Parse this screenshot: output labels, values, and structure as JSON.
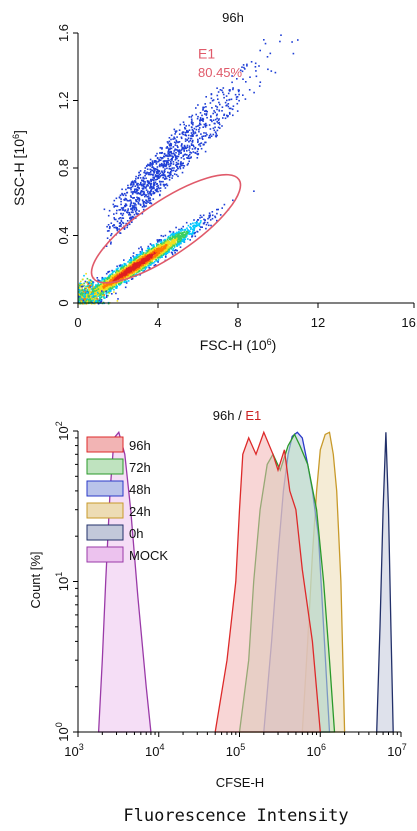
{
  "figure_caption": "Fluorescence Intensity",
  "chart_data": [
    {
      "type": "scatter",
      "title": "96h",
      "xlabel": "FSC-H",
      "xlabel_unit": "(10",
      "xlabel_exp": "6",
      "xlabel_close": ")",
      "ylabel": "SSC-H [10",
      "ylabel_exp": "6",
      "ylabel_close": "]",
      "xlim": [
        0,
        16.8
      ],
      "ylim": [
        0,
        1.6
      ],
      "xticks": [
        "0",
        "4",
        "8",
        "12",
        "16.8"
      ],
      "yticks": [
        "0",
        "0.4",
        "0.8",
        "1.2",
        "1.6"
      ],
      "gate": {
        "name": "E1",
        "percent": "80.45%",
        "shape": "ellipse",
        "center": [
          4.4,
          0.44
        ],
        "semi_axes": [
          4.4,
          0.16
        ],
        "rotation_deg": 34,
        "color": "#e05a6a"
      },
      "density_hotspot": [
        2.8,
        0.22
      ],
      "color_scale": [
        "#1f3fd6",
        "#00c8ff",
        "#38d060",
        "#f0e020",
        "#ff7a00",
        "#e02020"
      ]
    },
    {
      "type": "histogram",
      "title_sample": "96h",
      "title_sep": " / ",
      "title_gate": "E1",
      "title_gate_color": "#cc2222",
      "xlabel": "CFSE-H",
      "ylabel": "Count [%]",
      "x_scale": "log",
      "y_scale": "log",
      "xlim": [
        1000,
        10000000
      ],
      "ylim": [
        1,
        100
      ],
      "xtick_base": "10",
      "xtick_exps": [
        "3",
        "4",
        "5",
        "6",
        "7"
      ],
      "ytick_base": "10",
      "ytick_exps": [
        "0",
        "1",
        "2"
      ],
      "legend_position": "top-left",
      "series": [
        {
          "name": "96h",
          "stroke": "#dd2a2a",
          "fill": "#f2b4b4",
          "points": [
            [
              50000,
              1
            ],
            [
              70000,
              3
            ],
            [
              90000,
              10
            ],
            [
              100000,
              30
            ],
            [
              110000,
              70
            ],
            [
              130000,
              90
            ],
            [
              160000,
              70
            ],
            [
              200000,
              98
            ],
            [
              260000,
              70
            ],
            [
              300000,
              55
            ],
            [
              360000,
              75
            ],
            [
              420000,
              40
            ],
            [
              500000,
              30
            ],
            [
              600000,
              12
            ],
            [
              800000,
              4
            ],
            [
              1000000,
              1
            ]
          ]
        },
        {
          "name": "72h",
          "stroke": "#2a9a2a",
          "fill": "#bfe3bf",
          "points": [
            [
              100000,
              1
            ],
            [
              130000,
              3
            ],
            [
              150000,
              10
            ],
            [
              180000,
              30
            ],
            [
              220000,
              60
            ],
            [
              260000,
              70
            ],
            [
              320000,
              55
            ],
            [
              400000,
              80
            ],
            [
              480000,
              95
            ],
            [
              560000,
              80
            ],
            [
              700000,
              60
            ],
            [
              900000,
              30
            ],
            [
              1100000,
              10
            ],
            [
              1300000,
              3
            ],
            [
              1500000,
              1
            ]
          ]
        },
        {
          "name": "48h",
          "stroke": "#2a3ac8",
          "fill": "#b9c3ea",
          "points": [
            [
              200000,
              1
            ],
            [
              250000,
              4
            ],
            [
              300000,
              15
            ],
            [
              350000,
              40
            ],
            [
              400000,
              70
            ],
            [
              450000,
              92
            ],
            [
              520000,
              98
            ],
            [
              600000,
              90
            ],
            [
              700000,
              60
            ],
            [
              800000,
              40
            ],
            [
              950000,
              20
            ],
            [
              1100000,
              5
            ],
            [
              1300000,
              1
            ]
          ]
        },
        {
          "name": "24h",
          "stroke": "#c89a2a",
          "fill": "#eddcb4",
          "points": [
            [
              600000,
              1
            ],
            [
              700000,
              4
            ],
            [
              800000,
              15
            ],
            [
              900000,
              40
            ],
            [
              1000000,
              75
            ],
            [
              1150000,
              95
            ],
            [
              1300000,
              98
            ],
            [
              1450000,
              70
            ],
            [
              1600000,
              40
            ],
            [
              1800000,
              10
            ],
            [
              2000000,
              1
            ]
          ]
        },
        {
          "name": "0h",
          "stroke": "#22306a",
          "fill": "#c2c8da",
          "points": [
            [
              5000000,
              1
            ],
            [
              5500000,
              5
            ],
            [
              6000000,
              30
            ],
            [
              6500000,
              98
            ],
            [
              7000000,
              30
            ],
            [
              7500000,
              5
            ],
            [
              8000000,
              1
            ]
          ]
        },
        {
          "name": "MOCK",
          "stroke": "#9a3aa8",
          "fill": "#ecc2ee",
          "points": [
            [
              1800000,
              1
            ],
            [
              1800,
              1
            ],
            [
              2000,
              3
            ],
            [
              2200,
              10
            ],
            [
              2500,
              40
            ],
            [
              2800,
              90
            ],
            [
              3200,
              98
            ],
            [
              3800,
              70
            ],
            [
              4500,
              30
            ],
            [
              5500,
              8
            ],
            [
              7000,
              2
            ],
            [
              8000,
              1
            ]
          ]
        }
      ]
    }
  ]
}
